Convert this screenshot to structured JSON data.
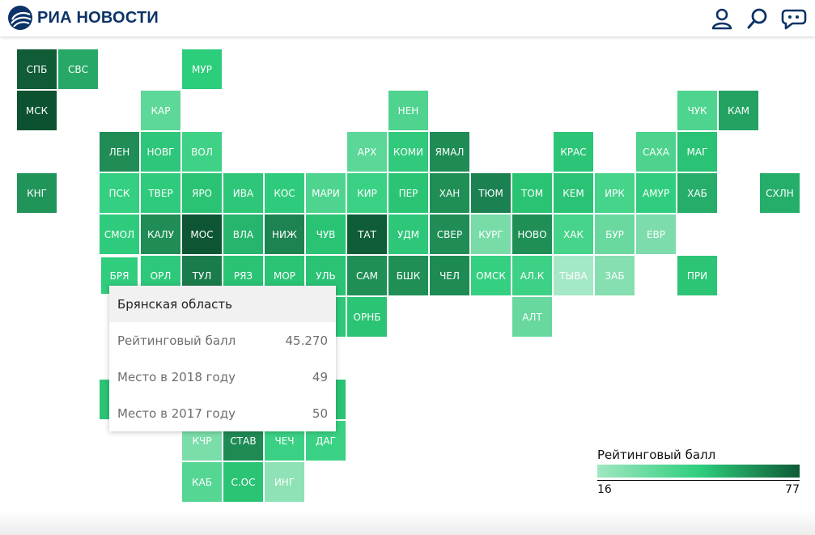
{
  "header": {
    "brand": "РИА НОВОСТИ",
    "icons": [
      "user-icon",
      "search-icon",
      "chat-icon"
    ],
    "brand_color": "#0c3368"
  },
  "map": {
    "tiles": [
      {
        "label": "СПБ",
        "col": 0,
        "row": 0,
        "color": "#0f5c36"
      },
      {
        "label": "СВС",
        "col": 1,
        "row": 0,
        "color": "#27a866"
      },
      {
        "label": "МУР",
        "col": 4,
        "row": 0,
        "color": "#2ccd7b"
      },
      {
        "label": "МСК",
        "col": 0,
        "row": 1,
        "color": "#0c5231"
      },
      {
        "label": "КАР",
        "col": 3,
        "row": 1,
        "color": "#5ed898"
      },
      {
        "label": "НЕН",
        "col": 9,
        "row": 1,
        "color": "#4fd38e"
      },
      {
        "label": "ЧУК",
        "col": 16,
        "row": 1,
        "color": "#4fd490"
      },
      {
        "label": "КАМ",
        "col": 17,
        "row": 1,
        "color": "#23a262"
      },
      {
        "label": "ЛЕН",
        "col": 2,
        "row": 2,
        "color": "#1f8d55"
      },
      {
        "label": "НОВГ",
        "col": 3,
        "row": 2,
        "color": "#2ec67a"
      },
      {
        "label": "ВОЛ",
        "col": 4,
        "row": 2,
        "color": "#3fd287"
      },
      {
        "label": "АРХ",
        "col": 8,
        "row": 2,
        "color": "#5bd797"
      },
      {
        "label": "КОМИ",
        "col": 9,
        "row": 2,
        "color": "#31c97c"
      },
      {
        "label": "ЯМАЛ",
        "col": 10,
        "row": 2,
        "color": "#1e8c54"
      },
      {
        "label": "КРАС",
        "col": 13,
        "row": 2,
        "color": "#2cc577"
      },
      {
        "label": "САХА",
        "col": 15,
        "row": 2,
        "color": "#4dd38e"
      },
      {
        "label": "МАГ",
        "col": 16,
        "row": 2,
        "color": "#2ac274"
      },
      {
        "label": "КНГ",
        "col": 0,
        "row": 3,
        "color": "#21945a"
      },
      {
        "label": "ПСК",
        "col": 2,
        "row": 3,
        "color": "#34cf80"
      },
      {
        "label": "ТВЕР",
        "col": 3,
        "row": 3,
        "color": "#2fcb7c"
      },
      {
        "label": "ЯРО",
        "col": 4,
        "row": 3,
        "color": "#2ac374"
      },
      {
        "label": "ИВА",
        "col": 5,
        "row": 3,
        "color": "#2ec77a"
      },
      {
        "label": "КОС",
        "col": 6,
        "row": 3,
        "color": "#2fcb7c"
      },
      {
        "label": "МАРИ",
        "col": 7,
        "row": 3,
        "color": "#4fd48f"
      },
      {
        "label": "КИР",
        "col": 8,
        "row": 3,
        "color": "#3ad184"
      },
      {
        "label": "ПЕР",
        "col": 9,
        "row": 3,
        "color": "#2bc475"
      },
      {
        "label": "ХАН",
        "col": 10,
        "row": 3,
        "color": "#1f8f56"
      },
      {
        "label": "ТЮМ",
        "col": 11,
        "row": 3,
        "color": "#1b8150"
      },
      {
        "label": "ТОМ",
        "col": 12,
        "row": 3,
        "color": "#2ac374"
      },
      {
        "label": "КЕМ",
        "col": 13,
        "row": 3,
        "color": "#2ac274"
      },
      {
        "label": "ИРК",
        "col": 14,
        "row": 3,
        "color": "#46d38a"
      },
      {
        "label": "АМУР",
        "col": 15,
        "row": 3,
        "color": "#31cd7e"
      },
      {
        "label": "ХАБ",
        "col": 16,
        "row": 3,
        "color": "#25ad69"
      },
      {
        "label": "СХЛН",
        "col": 18,
        "row": 3,
        "color": "#25ae69"
      },
      {
        "label": "СМОЛ",
        "col": 2,
        "row": 4,
        "color": "#2fcb7c"
      },
      {
        "label": "КАЛУ",
        "col": 3,
        "row": 4,
        "color": "#1f8d55"
      },
      {
        "label": "МОС",
        "col": 4,
        "row": 4,
        "color": "#0e5533"
      },
      {
        "label": "ВЛА",
        "col": 5,
        "row": 4,
        "color": "#27b46c"
      },
      {
        "label": "НИЖ",
        "col": 6,
        "row": 4,
        "color": "#1c8351"
      },
      {
        "label": "ЧУВ",
        "col": 7,
        "row": 4,
        "color": "#2ac374"
      },
      {
        "label": "ТАТ",
        "col": 8,
        "row": 4,
        "color": "#0f5d37"
      },
      {
        "label": "УДМ",
        "col": 9,
        "row": 4,
        "color": "#2ec77a"
      },
      {
        "label": "СВЕР",
        "col": 10,
        "row": 4,
        "color": "#1f8d55"
      },
      {
        "label": "КУРГ",
        "col": 11,
        "row": 4,
        "color": "#78dca8"
      },
      {
        "label": "НОВО",
        "col": 12,
        "row": 4,
        "color": "#1f8f56"
      },
      {
        "label": "ХАК",
        "col": 13,
        "row": 4,
        "color": "#46d38a"
      },
      {
        "label": "БУР",
        "col": 14,
        "row": 4,
        "color": "#6ad99f"
      },
      {
        "label": "ЕВР",
        "col": 15,
        "row": 4,
        "color": "#7cdcab"
      },
      {
        "label": "БРЯ",
        "col": 2,
        "row": 5,
        "color": "#31cd7e",
        "active": true
      },
      {
        "label": "ОРЛ",
        "col": 3,
        "row": 5,
        "color": "#2ec87b"
      },
      {
        "label": "ТУЛ",
        "col": 4,
        "row": 5,
        "color": "#1a7c4b"
      },
      {
        "label": "РЯЗ",
        "col": 5,
        "row": 5,
        "color": "#2ac374"
      },
      {
        "label": "МОР",
        "col": 6,
        "row": 5,
        "color": "#2bc475"
      },
      {
        "label": "УЛЬ",
        "col": 7,
        "row": 5,
        "color": "#2ac374"
      },
      {
        "label": "САМ",
        "col": 8,
        "row": 5,
        "color": "#1f8f56"
      },
      {
        "label": "БШК",
        "col": 9,
        "row": 5,
        "color": "#1f8f56"
      },
      {
        "label": "ЧЕЛ",
        "col": 10,
        "row": 5,
        "color": "#1e8b54"
      },
      {
        "label": "ОМСК",
        "col": 11,
        "row": 5,
        "color": "#34cf80"
      },
      {
        "label": "АЛ.К",
        "col": 12,
        "row": 5,
        "color": "#3dd186"
      },
      {
        "label": "ТЫВА",
        "col": 13,
        "row": 5,
        "color": "#a5e8c6"
      },
      {
        "label": "ЗАБ",
        "col": 14,
        "row": 5,
        "color": "#85dfb0"
      },
      {
        "label": "ПРИ",
        "col": 16,
        "row": 5,
        "color": "#2bc575"
      },
      {
        "label": "",
        "col": 7,
        "row": 6,
        "color": "#2ec77a"
      },
      {
        "label": "ОРНБ",
        "col": 8,
        "row": 6,
        "color": "#2bc474"
      },
      {
        "label": "АЛТ",
        "col": 12,
        "row": 6,
        "color": "#68d89e"
      },
      {
        "label": "К",
        "col": 2,
        "row": 8,
        "color": "#2bc475"
      },
      {
        "label": "",
        "col": 7,
        "row": 8,
        "color": "#2bc474"
      },
      {
        "label": "КЧР",
        "col": 4,
        "row": 9,
        "color": "#7bddaa"
      },
      {
        "label": "СТАВ",
        "col": 5,
        "row": 9,
        "color": "#1e8b54"
      },
      {
        "label": "ЧЕЧ",
        "col": 6,
        "row": 9,
        "color": "#3ad184"
      },
      {
        "label": "ДАГ",
        "col": 7,
        "row": 9,
        "color": "#3ad184"
      },
      {
        "label": "КАБ",
        "col": 4,
        "row": 10,
        "color": "#56d693"
      },
      {
        "label": "С.ОС",
        "col": 5,
        "row": 10,
        "color": "#2bc475"
      },
      {
        "label": "ИНГ",
        "col": 6,
        "row": 10,
        "color": "#8ee2b5"
      }
    ]
  },
  "tooltip": {
    "title": "Брянская область",
    "rows": [
      {
        "label": "Рейтинговый балл",
        "value": "45.270"
      },
      {
        "label": "Место в 2018 году",
        "value": "49"
      },
      {
        "label": "Место в 2017 году",
        "value": "50"
      }
    ]
  },
  "legend": {
    "title": "Рейтинговый балл",
    "min": "16",
    "max": "77",
    "colors": [
      "#a0e7c1",
      "#2fcf7e",
      "#0e5b35"
    ]
  }
}
